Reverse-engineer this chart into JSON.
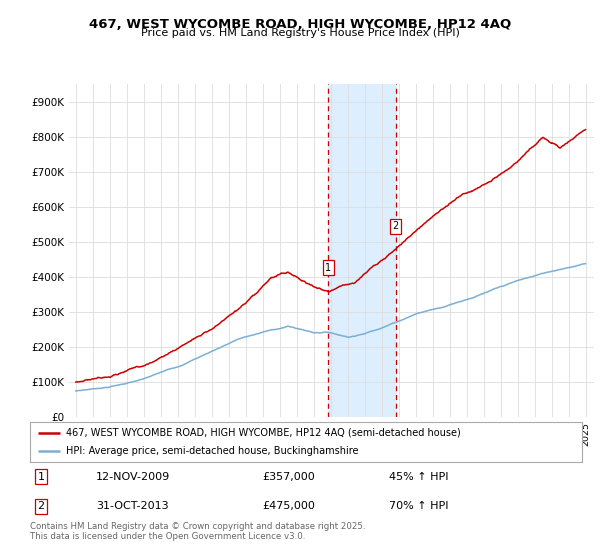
{
  "title": "467, WEST WYCOMBE ROAD, HIGH WYCOMBE, HP12 4AQ",
  "subtitle": "Price paid vs. HM Land Registry's House Price Index (HPI)",
  "ylim": [
    0,
    950000
  ],
  "yticks": [
    0,
    100000,
    200000,
    300000,
    400000,
    500000,
    600000,
    700000,
    800000,
    900000
  ],
  "ytick_labels": [
    "£0",
    "£100K",
    "£200K",
    "£300K",
    "£400K",
    "£500K",
    "£600K",
    "£700K",
    "£800K",
    "£900K"
  ],
  "sale1_date": 2009.87,
  "sale1_price": 357000,
  "sale1_label": "12-NOV-2009",
  "sale1_amount": "£357,000",
  "sale1_hpi": "45% ↑ HPI",
  "sale2_date": 2013.83,
  "sale2_price": 475000,
  "sale2_label": "31-OCT-2013",
  "sale2_amount": "£475,000",
  "sale2_hpi": "70% ↑ HPI",
  "legend_line1": "467, WEST WYCOMBE ROAD, HIGH WYCOMBE, HP12 4AQ (semi-detached house)",
  "legend_line2": "HPI: Average price, semi-detached house, Buckinghamshire",
  "footer": "Contains HM Land Registry data © Crown copyright and database right 2025.\nThis data is licensed under the Open Government Licence v3.0.",
  "line_color_red": "#cc0000",
  "line_color_blue": "#7bafd4",
  "shade_color": "#ddeeff",
  "vline_color": "#cc0000",
  "background_color": "#ffffff",
  "grid_color": "#dddddd"
}
